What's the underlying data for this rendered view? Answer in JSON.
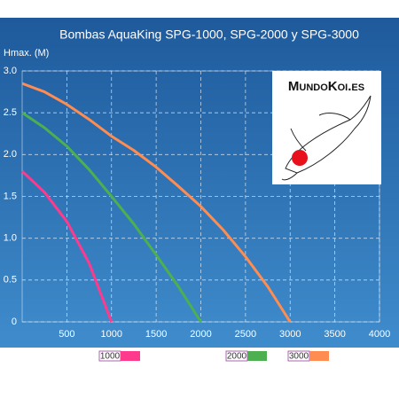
{
  "chart_data": {
    "type": "line",
    "title": "Bombas AquaKing SPG-1000, SPG-2000 y SPG-3000",
    "y_label": "Hmax. (M)",
    "x": [
      0,
      250,
      500,
      750,
      1000,
      1250,
      1500,
      1750,
      2000,
      2250,
      2500,
      2750,
      3000
    ],
    "series": [
      {
        "name": "1000",
        "color": "#ff3a8c",
        "values": [
          1.8,
          1.55,
          1.2,
          0.7,
          0,
          null,
          null,
          null,
          null,
          null,
          null,
          null,
          null
        ]
      },
      {
        "name": "2000",
        "color": "#4caf50",
        "values": [
          2.5,
          2.32,
          2.1,
          1.82,
          1.5,
          1.17,
          0.8,
          0.42,
          0,
          null,
          null,
          null,
          null
        ]
      },
      {
        "name": "3000",
        "color": "#ff8c50",
        "values": [
          2.85,
          2.75,
          2.6,
          2.42,
          2.22,
          2.05,
          1.85,
          1.62,
          1.38,
          1.1,
          0.78,
          0.42,
          0
        ]
      }
    ],
    "xlim": [
      0,
      4000
    ],
    "xticks": [
      500,
      1000,
      1500,
      2000,
      2500,
      3000,
      3500,
      4000
    ],
    "ylim": [
      0,
      3
    ],
    "yticks": [
      0,
      0.5,
      {
        "value": 1,
        "label": "1.0"
      },
      1.5,
      {
        "value": 2,
        "label": "2.0"
      },
      2.5,
      {
        "value": 3,
        "label": "3.0"
      }
    ],
    "grid": true
  },
  "logo": {
    "text": "MundoKoi.es"
  }
}
